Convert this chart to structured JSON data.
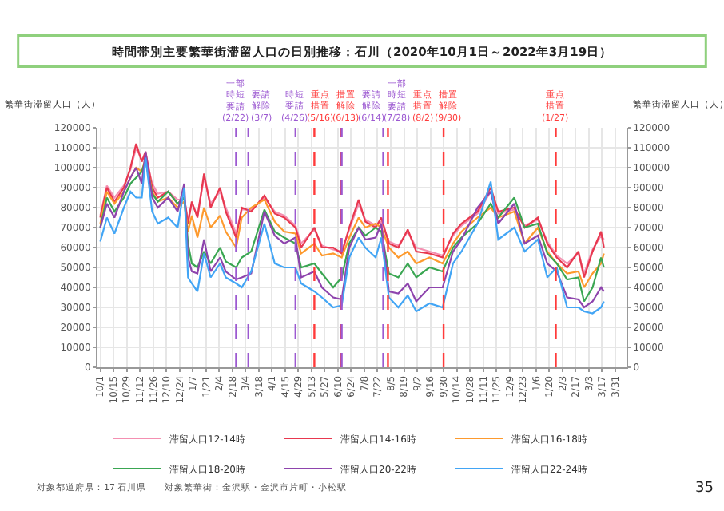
{
  "chart_data": {
    "type": "line",
    "title": "時間帯別主要繁華街滞留人口の日別推移：石川（2020年10月1日～2022年3月19日）",
    "ylabel": "繁華街滞留人口（人）",
    "y2label": "繁華街滞留人口（人）",
    "x": [
      "2020-10-01",
      "2020-10-08",
      "2020-10-16",
      "2020-10-26",
      "2020-11-02",
      "2020-11-08",
      "2020-11-14",
      "2020-11-18",
      "2020-11-25",
      "2020-12-01",
      "2020-12-12",
      "2020-12-22",
      "2020-12-29",
      "2021-01-02",
      "2021-01-06",
      "2021-01-12",
      "2021-01-19",
      "2021-01-26",
      "2021-02-05",
      "2021-02-11",
      "2021-02-22",
      "2021-02-28",
      "2021-03-10",
      "2021-03-24",
      "2021-04-04",
      "2021-04-14",
      "2021-04-26",
      "2021-05-02",
      "2021-05-16",
      "2021-05-24",
      "2021-06-05",
      "2021-06-14",
      "2021-06-22",
      "2021-07-02",
      "2021-07-09",
      "2021-07-20",
      "2021-07-26",
      "2021-08-03",
      "2021-08-13",
      "2021-08-23",
      "2021-09-01",
      "2021-09-15",
      "2021-09-29",
      "2021-10-10",
      "2021-10-19",
      "2021-11-05",
      "2021-11-19",
      "2021-11-27",
      "2021-12-14",
      "2021-12-25",
      "2022-01-08",
      "2022-01-18",
      "2022-01-28",
      "2022-02-08",
      "2022-02-20",
      "2022-02-26",
      "2022-03-07",
      "2022-03-16",
      "2022-03-19"
    ],
    "series": [
      {
        "name": "滞留人口12-14時",
        "color": "#f48fb1",
        "values": [
          76000,
          91000,
          85000,
          91000,
          99000,
          110000,
          104000,
          106000,
          92000,
          87000,
          88000,
          84000,
          84000,
          74000,
          82000,
          76000,
          95000,
          82000,
          88000,
          80000,
          67000,
          79000,
          79000,
          85000,
          78000,
          76000,
          71000,
          62000,
          69000,
          61000,
          59000,
          58000,
          69000,
          82000,
          74000,
          71000,
          73000,
          63000,
          61000,
          68000,
          60000,
          58000,
          56000,
          66000,
          71000,
          77000,
          88000,
          77000,
          79000,
          71000,
          74000,
          63000,
          56000,
          52000,
          57000,
          47000,
          59000,
          66000,
          64000
        ]
      },
      {
        "name": "滞留人口14-16時",
        "color": "#e8384f",
        "values": [
          75000,
          90000,
          83000,
          90000,
          100000,
          112000,
          103000,
          108000,
          90000,
          85000,
          88000,
          82000,
          85000,
          72000,
          83000,
          75000,
          97000,
          80000,
          90000,
          78000,
          65000,
          80000,
          78000,
          86000,
          77000,
          75000,
          70000,
          60000,
          70000,
          60000,
          60000,
          57000,
          70000,
          84000,
          73000,
          70000,
          75000,
          62000,
          60000,
          69000,
          58000,
          57000,
          55000,
          67000,
          72000,
          78000,
          90000,
          78000,
          80000,
          70000,
          75000,
          62000,
          55000,
          50000,
          58000,
          45000,
          58000,
          68000,
          60000
        ]
      },
      {
        "name": "滞留人口16-18時",
        "color": "#fd9a2e",
        "values": [
          72000,
          88000,
          82000,
          88000,
          95000,
          100000,
          98000,
          105000,
          88000,
          83000,
          85000,
          80000,
          83000,
          68000,
          76000,
          65000,
          80000,
          70000,
          76000,
          68000,
          60000,
          75000,
          80000,
          84000,
          73000,
          68000,
          67000,
          57000,
          62000,
          56000,
          57000,
          55000,
          65000,
          75000,
          70000,
          72000,
          70000,
          60000,
          55000,
          58000,
          52000,
          55000,
          52000,
          62000,
          68000,
          75000,
          80000,
          75000,
          78000,
          62000,
          70000,
          58000,
          52000,
          47000,
          48000,
          40000,
          47000,
          52000,
          57000
        ]
      },
      {
        "name": "滞留人口18-20時",
        "color": "#3aa652",
        "values": [
          70000,
          85000,
          78000,
          85000,
          92000,
          95000,
          98000,
          104000,
          87000,
          83000,
          88000,
          82000,
          85000,
          62000,
          52000,
          50000,
          58000,
          52000,
          60000,
          53000,
          50000,
          55000,
          58000,
          79000,
          68000,
          65000,
          62000,
          50000,
          52000,
          47000,
          40000,
          45000,
          62000,
          70000,
          66000,
          70000,
          68000,
          47000,
          45000,
          52000,
          45000,
          50000,
          48000,
          60000,
          65000,
          72000,
          82000,
          75000,
          85000,
          70000,
          72000,
          57000,
          52000,
          44000,
          45000,
          33000,
          40000,
          55000,
          50000
        ]
      },
      {
        "name": "滞留人口20-22時",
        "color": "#8e44ad",
        "values": [
          70000,
          82000,
          75000,
          88000,
          95000,
          100000,
          92000,
          108000,
          85000,
          80000,
          85000,
          78000,
          92000,
          55000,
          48000,
          47000,
          64000,
          48000,
          55000,
          48000,
          44000,
          45000,
          47000,
          78000,
          66000,
          62000,
          65000,
          45000,
          48000,
          40000,
          35000,
          34000,
          60000,
          70000,
          64000,
          65000,
          72000,
          38000,
          37000,
          42000,
          33000,
          40000,
          40000,
          58000,
          64000,
          80000,
          88000,
          72000,
          82000,
          62000,
          66000,
          52000,
          48000,
          35000,
          34000,
          30000,
          33000,
          40000,
          38000
        ]
      },
      {
        "name": "滞留人口22-24時",
        "color": "#42a5f5",
        "values": [
          63000,
          75000,
          67000,
          80000,
          88000,
          85000,
          85000,
          105000,
          78000,
          72000,
          75000,
          70000,
          90000,
          45000,
          42000,
          38000,
          57000,
          45000,
          52000,
          45000,
          42000,
          40000,
          48000,
          72000,
          52000,
          50000,
          50000,
          42000,
          38000,
          35000,
          30000,
          31000,
          55000,
          65000,
          60000,
          55000,
          65000,
          35000,
          30000,
          36000,
          28000,
          32000,
          30000,
          52000,
          58000,
          72000,
          93000,
          64000,
          70000,
          58000,
          64000,
          45000,
          50000,
          30000,
          30000,
          28000,
          27000,
          30000,
          33000
        ]
      }
    ],
    "xlim": [
      "2020-09-28",
      "2022-04-12"
    ],
    "xticks": [
      {
        "value": "2020-10-01",
        "label": "10/1"
      },
      {
        "value": "2020-10-15",
        "label": "10/15"
      },
      {
        "value": "2020-10-29",
        "label": "10/29"
      },
      {
        "value": "2020-11-12",
        "label": "11/12"
      },
      {
        "value": "2020-11-26",
        "label": "11/26"
      },
      {
        "value": "2020-12-10",
        "label": "12/10"
      },
      {
        "value": "2020-12-24",
        "label": "12/24"
      },
      {
        "value": "2021-01-07",
        "label": "1/7"
      },
      {
        "value": "2021-01-21",
        "label": "1/21"
      },
      {
        "value": "2021-02-04",
        "label": "2/4"
      },
      {
        "value": "2021-02-18",
        "label": "2/18"
      },
      {
        "value": "2021-03-04",
        "label": "3/4"
      },
      {
        "value": "2021-03-18",
        "label": "3/18"
      },
      {
        "value": "2021-04-01",
        "label": "4/1"
      },
      {
        "value": "2021-04-15",
        "label": "4/15"
      },
      {
        "value": "2021-04-29",
        "label": "4/29"
      },
      {
        "value": "2021-05-13",
        "label": "5/13"
      },
      {
        "value": "2021-05-27",
        "label": "5/27"
      },
      {
        "value": "2021-06-10",
        "label": "6/10"
      },
      {
        "value": "2021-06-24",
        "label": "6/24"
      },
      {
        "value": "2021-07-08",
        "label": "7/8"
      },
      {
        "value": "2021-07-22",
        "label": "7/22"
      },
      {
        "value": "2021-08-05",
        "label": "8/5"
      },
      {
        "value": "2021-08-19",
        "label": "8/19"
      },
      {
        "value": "2021-09-02",
        "label": "9/2"
      },
      {
        "value": "2021-09-16",
        "label": "9/16"
      },
      {
        "value": "2021-09-30",
        "label": "9/30"
      },
      {
        "value": "2021-10-14",
        "label": "10/14"
      },
      {
        "value": "2021-10-28",
        "label": "10/28"
      },
      {
        "value": "2021-11-11",
        "label": "11/11"
      },
      {
        "value": "2021-11-25",
        "label": "11/25"
      },
      {
        "value": "2021-12-09",
        "label": "12/9"
      },
      {
        "value": "2021-12-23",
        "label": "12/23"
      },
      {
        "value": "2022-01-06",
        "label": "1/6"
      },
      {
        "value": "2022-01-20",
        "label": "1/20"
      },
      {
        "value": "2022-02-03",
        "label": "2/3"
      },
      {
        "value": "2022-02-17",
        "label": "2/17"
      },
      {
        "value": "2022-03-03",
        "label": "3/3"
      },
      {
        "value": "2022-03-17",
        "label": "3/17"
      },
      {
        "value": "2022-03-31",
        "label": "3/31"
      }
    ],
    "ylim": [
      0,
      120000
    ],
    "yticks": [
      0,
      10000,
      20000,
      30000,
      40000,
      50000,
      60000,
      70000,
      80000,
      90000,
      100000,
      110000,
      120000
    ],
    "y2lim": [
      0,
      120000
    ],
    "y2ticks": [
      0,
      10000,
      20000,
      30000,
      40000,
      50000,
      60000,
      70000,
      80000,
      90000,
      100000,
      110000,
      120000
    ],
    "ref_lines": [
      {
        "axis": "x",
        "value": "2021-02-22",
        "label": "一部時短要請(2/22)",
        "color": "#9c59d1",
        "line_style": "dashed"
      },
      {
        "axis": "x",
        "value": "2021-03-07",
        "label": "要請解除(3/7)",
        "color": "#9c59d1",
        "line_style": "dashed"
      },
      {
        "axis": "x",
        "value": "2021-04-26",
        "label": "時短要請(4/26)",
        "color": "#9c59d1",
        "line_style": "dashed"
      },
      {
        "axis": "x",
        "value": "2021-05-16",
        "label": "重点措置(5/16)",
        "color": "#ff3b3b",
        "line_style": "dashed"
      },
      {
        "axis": "x",
        "value": "2021-06-13",
        "label": "措置解除(6/13)",
        "color": "#ff3b3b",
        "line_style": "dashed"
      },
      {
        "axis": "x",
        "value": "2021-06-14",
        "label": "要請解除(6/14)",
        "color": "#9c59d1",
        "line_style": "dashed"
      },
      {
        "axis": "x",
        "value": "2021-07-28",
        "label": "一部時短要請(7/28)",
        "color": "#9c59d1",
        "line_style": "dashed"
      },
      {
        "axis": "x",
        "value": "2021-08-02",
        "label": "重点措置(8/2)",
        "color": "#ff3b3b",
        "line_style": "dashed"
      },
      {
        "axis": "x",
        "value": "2021-09-30",
        "label": "措置解除(9/30)",
        "color": "#ff3b3b",
        "line_style": "dashed"
      },
      {
        "axis": "x",
        "value": "2022-01-27",
        "label": "重点措置(1/27)",
        "color": "#ff3b3b",
        "line_style": "dashed"
      }
    ],
    "annotations": [
      "対象都道府県：17 石川県",
      "対象繁華街：金沢駅・金沢市片町・小松駅",
      "35"
    ],
    "grid": true,
    "legend": "bottom",
    "marker": "none",
    "line_style": "solid"
  }
}
